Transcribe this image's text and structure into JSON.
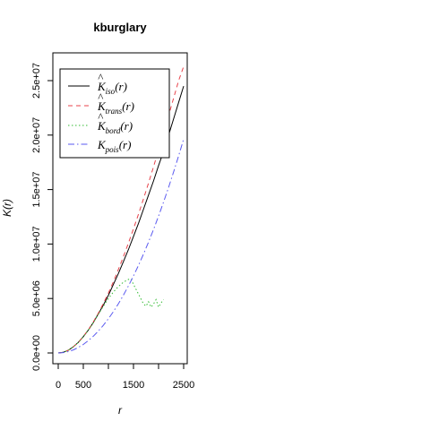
{
  "chart_data": {
    "type": "line",
    "title": "kburglary",
    "xlabel": "r",
    "ylabel": "K(r)",
    "xlim": [
      0,
      2500
    ],
    "ylim": [
      0,
      26000000
    ],
    "grid": false,
    "legend_position": "top-left",
    "x_ticks": [
      {
        "value": 0,
        "label": "0"
      },
      {
        "value": 500,
        "label": "500"
      },
      {
        "value": 1000,
        "label": ""
      },
      {
        "value": 1500,
        "label": "1500"
      },
      {
        "value": 2000,
        "label": ""
      },
      {
        "value": 2500,
        "label": "2500"
      }
    ],
    "y_ticks": [
      {
        "value": 0,
        "label": "0.0e+00"
      },
      {
        "value": 5000000,
        "label": "5.0e+06"
      },
      {
        "value": 10000000,
        "label": "1.0e+07"
      },
      {
        "value": 15000000,
        "label": "1.5e+07"
      },
      {
        "value": 20000000,
        "label": "2.0e+07"
      },
      {
        "value": 25000000,
        "label": "2.5e+07"
      }
    ],
    "series": [
      {
        "key": "iso",
        "name": "K̂_iso(r)",
        "color": "#000000",
        "dash": "none",
        "x": [
          0,
          100,
          200,
          300,
          400,
          500,
          600,
          700,
          800,
          900,
          1000,
          1100,
          1200,
          1300,
          1400,
          1500,
          1600,
          1700,
          1800,
          1900,
          2000,
          2100,
          2200,
          2300,
          2400,
          2500
        ],
        "y": [
          0,
          60000,
          250000,
          570000,
          970000,
          1500000,
          2100000,
          2800000,
          3600000,
          4400000,
          5300000,
          6300000,
          7300000,
          8400000,
          9500000,
          10700000,
          11900000,
          13200000,
          14500000,
          15800000,
          17200000,
          18500000,
          20000000,
          21500000,
          23000000,
          24500000
        ]
      },
      {
        "key": "trans",
        "name": "K̂_trans(r)",
        "color": "#e8434b",
        "dash": "5,4",
        "x": [
          0,
          100,
          200,
          300,
          400,
          500,
          600,
          700,
          800,
          900,
          1000,
          1100,
          1200,
          1300,
          1400,
          1500,
          1600,
          1700,
          1800,
          1900,
          2000,
          2100,
          2200,
          2300,
          2400,
          2500
        ],
        "y": [
          0,
          60000,
          250000,
          570000,
          980000,
          1510000,
          2130000,
          2850000,
          3660000,
          4550000,
          5500000,
          6550000,
          7680000,
          8850000,
          10100000,
          11400000,
          12750000,
          14150000,
          15600000,
          17100000,
          18650000,
          20200000,
          21800000,
          23400000,
          25000000,
          26300000
        ]
      },
      {
        "key": "bord",
        "name": "K̂_bord(r)",
        "color": "#33bb33",
        "dash": "1.5,2.5",
        "x": [
          0,
          100,
          200,
          300,
          400,
          500,
          600,
          700,
          800,
          900,
          1000,
          1100,
          1200,
          1300,
          1400,
          1450,
          1500,
          1600,
          1700,
          1750,
          1800,
          1850,
          1900,
          1950,
          2000,
          2050,
          2100
        ],
        "y": [
          0,
          60000,
          250000,
          570000,
          970000,
          1500000,
          2100000,
          2800000,
          3550000,
          4300000,
          5000000,
          5600000,
          6100000,
          6500000,
          6750000,
          6800000,
          6300000,
          5400000,
          4500000,
          4300000,
          4700000,
          4200000,
          4500000,
          4900000,
          4200000,
          4600000,
          4900000
        ]
      },
      {
        "key": "pois",
        "name": "K_pois(r)",
        "color": "#5a5af0",
        "dash": "7,3,1.5,3",
        "x": [
          0,
          100,
          200,
          300,
          400,
          500,
          600,
          700,
          800,
          900,
          1000,
          1100,
          1200,
          1300,
          1400,
          1500,
          1600,
          1700,
          1800,
          1900,
          2000,
          2100,
          2200,
          2300,
          2400,
          2500
        ],
        "y": [
          0,
          31000,
          126000,
          283000,
          503000,
          785000,
          1131000,
          1539000,
          2011000,
          2545000,
          3142000,
          3801000,
          4524000,
          5309000,
          6158000,
          7069000,
          8042000,
          9079000,
          10179000,
          11341000,
          12566000,
          13854000,
          15205000,
          16619000,
          18096000,
          19635000
        ]
      }
    ]
  }
}
